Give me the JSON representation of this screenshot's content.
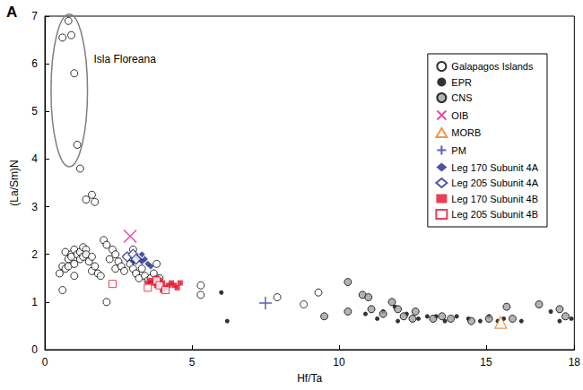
{
  "chart_data": {
    "type": "scatter",
    "title": "A",
    "xlabel": "Hf/Ta",
    "ylabel": "(La/Sm)N",
    "xlim": [
      0,
      18
    ],
    "xticks": [
      0,
      5,
      10,
      15
    ],
    "ylim": [
      0,
      7
    ],
    "yticks": [
      0,
      1,
      2,
      3,
      4,
      5,
      6,
      7
    ],
    "grid": false,
    "legend": "upper right",
    "annotations": [
      {
        "text": "Isla Floreana",
        "x": 1.66,
        "y": 6.1,
        "ellipse": {
          "cx": 0.83,
          "cy": 5.44,
          "rx": 0.62,
          "ry": 1.6
        }
      }
    ],
    "series": [
      {
        "name": "Galapagos Islands",
        "color": "#000000",
        "marker": "open_circle",
        "x": [
          0.8,
          0.6,
          0.9,
          1.0,
          1.1,
          1.2,
          1.4,
          1.6,
          1.7,
          0.5,
          0.6,
          0.6,
          0.7,
          0.7,
          0.8,
          0.8,
          0.9,
          0.9,
          1.0,
          1.0,
          1.0,
          1.1,
          1.2,
          1.2,
          1.3,
          1.3,
          1.4,
          1.4,
          1.5,
          1.6,
          1.6,
          1.7,
          1.8,
          1.9,
          2.0,
          2.1,
          2.1,
          2.2,
          2.3,
          2.4,
          2.4,
          2.5,
          2.6,
          2.7,
          2.8,
          2.9,
          3.0,
          3.0,
          3.1,
          3.2,
          3.3,
          3.4,
          3.5,
          3.6,
          3.7,
          3.8,
          3.9,
          5.3,
          5.3,
          7.9,
          8.8,
          9.3
        ],
        "values": [
          6.9,
          6.55,
          6.6,
          5.8,
          4.3,
          3.8,
          3.15,
          3.25,
          3.1,
          1.6,
          1.25,
          1.75,
          1.7,
          2.05,
          1.9,
          1.75,
          2.0,
          1.95,
          2.1,
          1.8,
          1.55,
          2.0,
          1.9,
          2.05,
          1.95,
          2.15,
          2.1,
          2.0,
          1.85,
          1.65,
          1.95,
          1.75,
          1.6,
          1.55,
          2.3,
          2.2,
          1.0,
          1.9,
          2.1,
          2.0,
          1.7,
          1.85,
          1.75,
          1.65,
          1.95,
          1.8,
          2.1,
          1.7,
          1.6,
          1.5,
          1.7,
          1.55,
          1.45,
          1.5,
          1.6,
          1.8,
          1.5,
          1.35,
          1.15,
          1.1,
          0.95,
          1.2
        ]
      },
      {
        "name": "EPR",
        "color": "#000000",
        "marker": "dot",
        "x": [
          6.0,
          6.2,
          10.9,
          11.5,
          11.3,
          11.9,
          12.0,
          12.3,
          12.7,
          13.0,
          13.3,
          13.6,
          14.0,
          14.4,
          14.8,
          15.1,
          15.4,
          15.6,
          16.2,
          17.2,
          17.5,
          17.9
        ],
        "values": [
          1.2,
          0.6,
          0.75,
          0.8,
          0.65,
          0.9,
          0.6,
          0.75,
          0.65,
          0.7,
          0.7,
          0.6,
          0.7,
          0.65,
          0.6,
          0.7,
          0.6,
          0.65,
          0.6,
          0.8,
          0.6,
          0.65
        ]
      },
      {
        "name": "CNS",
        "color": "#a0a0a0",
        "marker": "circle",
        "x": [
          9.5,
          10.3,
          10.3,
          10.8,
          11.0,
          11.1,
          11.5,
          11.8,
          12.0,
          12.2,
          12.5,
          12.6,
          13.2,
          13.5,
          13.8,
          14.5,
          15.1,
          15.7,
          15.9,
          16.8,
          17.5,
          17.7
        ],
        "values": [
          0.7,
          1.42,
          0.8,
          1.15,
          1.1,
          0.85,
          0.75,
          1.0,
          0.85,
          0.7,
          0.65,
          0.8,
          0.65,
          0.7,
          0.65,
          0.6,
          0.65,
          0.9,
          0.65,
          0.95,
          0.85,
          0.7
        ]
      },
      {
        "name": "OIB",
        "color": "#e0218a",
        "marker": "x",
        "x": [
          2.9
        ],
        "values": [
          2.38
        ]
      },
      {
        "name": "MORB",
        "color": "#f07c1e",
        "marker": "open_triangle",
        "x": [
          15.5
        ],
        "values": [
          0.57
        ]
      },
      {
        "name": "PM",
        "color": "#2e3a9e",
        "marker": "plus",
        "x": [
          7.5
        ],
        "values": [
          0.98
        ]
      },
      {
        "name": "Leg 170 Subunit 4A",
        "color": "#1f2a8a",
        "marker": "diamond",
        "x": [
          3.1,
          3.2,
          3.3,
          3.4,
          3.5,
          3.6,
          3.3,
          3.0
        ],
        "values": [
          1.95,
          1.9,
          1.85,
          1.9,
          1.8,
          1.75,
          2.0,
          1.85
        ]
      },
      {
        "name": "Leg 205 Subunit 4A",
        "color": "#1f2a8a",
        "marker": "open_diamond",
        "x": [
          2.8,
          3.0,
          3.1
        ],
        "values": [
          1.95,
          2.0,
          1.9
        ]
      },
      {
        "name": "Leg 170 Subunit 4B",
        "color": "#e3102a",
        "marker": "square",
        "x": [
          3.5,
          3.6,
          3.7,
          3.8,
          3.9,
          4.0,
          4.1,
          4.2,
          4.3,
          4.4,
          4.5,
          4.6,
          3.8,
          4.0
        ],
        "values": [
          1.4,
          1.45,
          1.4,
          1.35,
          1.45,
          1.4,
          1.3,
          1.35,
          1.4,
          1.35,
          1.3,
          1.4,
          1.5,
          1.25
        ]
      },
      {
        "name": "Leg 205 Subunit 4B",
        "color": "#e3102a",
        "marker": "open_square",
        "x": [
          2.3,
          3.5,
          3.8,
          3.9,
          4.1
        ],
        "values": [
          1.38,
          1.3,
          1.45,
          1.35,
          1.25
        ]
      }
    ]
  }
}
